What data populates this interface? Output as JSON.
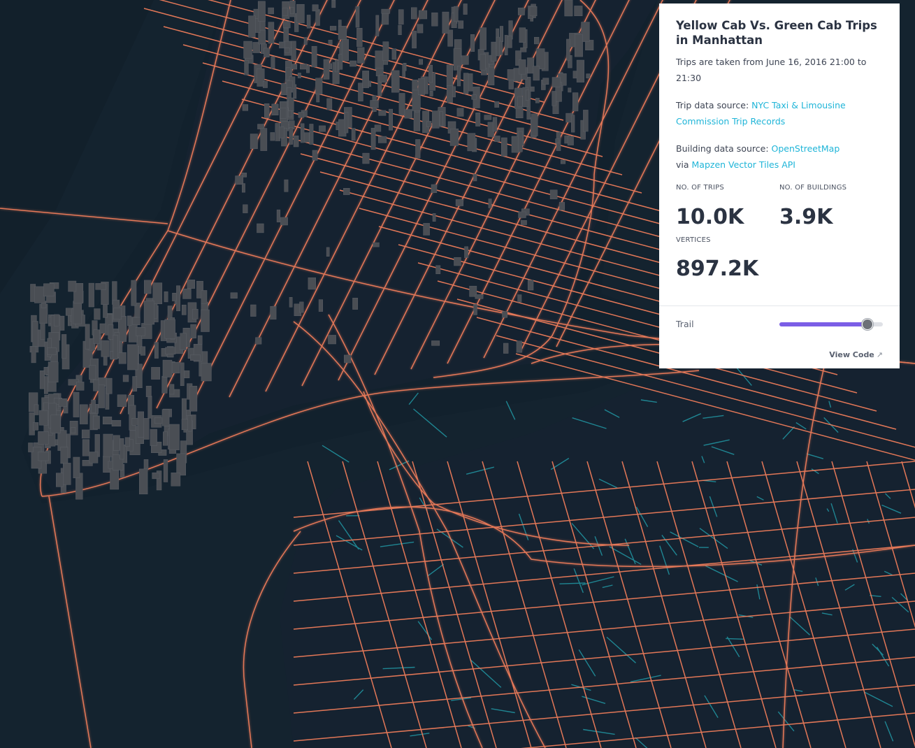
{
  "map": {
    "colors": {
      "background": "#101b26",
      "water": "#13232f",
      "land": "#14202c",
      "trips_yellow_cab": "#ee7c5a",
      "trips_green_cab": "#23a7b3",
      "buildings": "#4a4e54"
    }
  },
  "panel": {
    "title": "Yellow Cab Vs. Green Cab Trips in Manhattan",
    "description": "Trips are taken from June 16, 2016 21:00 to 21:30",
    "trip_source_prefix": "Trip data source: ",
    "trip_source_link": "NYC Taxi & Limousine Commission Trip Records",
    "building_source_prefix": "Building data source: ",
    "building_source_link": "OpenStreetMap",
    "via_prefix": "via ",
    "via_link": "Mapzen Vector Tiles API",
    "stats": {
      "trips_label": "NO. OF TRIPS",
      "trips_value": "10.0K",
      "buildings_label": "NO. OF BUILDINGS",
      "buildings_value": "3.9K",
      "vertices_label": "VERTICES",
      "vertices_value": "897.2K"
    },
    "trail": {
      "label": "Trail",
      "value_fraction": 0.85
    },
    "view_code_label": "View Code",
    "view_code_icon": "external-link-arrow-icon"
  }
}
